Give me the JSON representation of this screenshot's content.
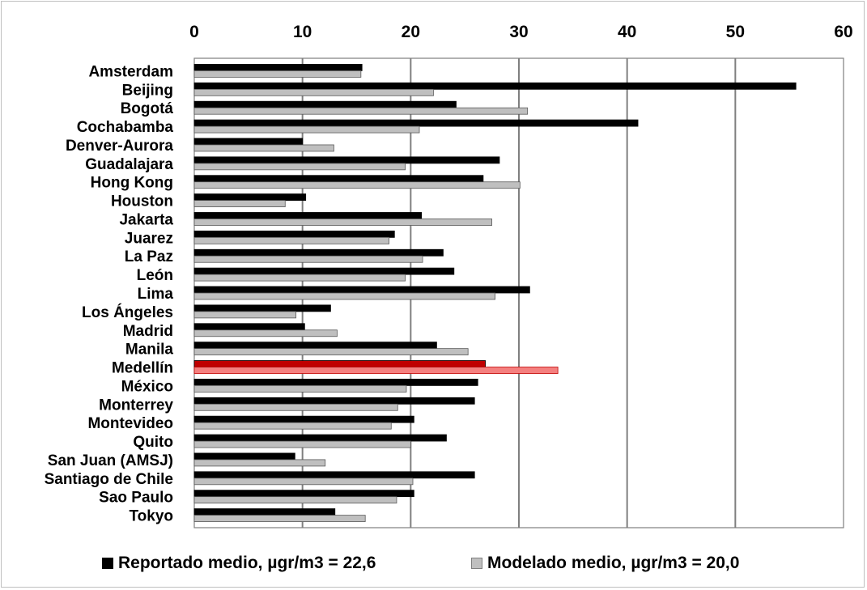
{
  "chart_data": {
    "type": "bar",
    "orientation": "horizontal",
    "categories": [
      "Amsterdam",
      "Beijing",
      "Bogotá",
      "Cochabamba",
      "Denver-Aurora",
      "Guadalajara",
      "Hong Kong",
      "Houston",
      "Jakarta",
      "Juarez",
      "La Paz",
      "León",
      "Lima",
      "Los Ángeles",
      "Madrid",
      "Manila",
      "Medellín",
      "México",
      "Monterrey",
      "Montevideo",
      "Quito",
      "San Juan (AMSJ)",
      "Santiago de Chile",
      "Sao Paulo",
      "Tokyo"
    ],
    "series": [
      {
        "name": "Reportado medio,  µgr/m3 = 22,6",
        "color": "#000000",
        "values": [
          15.5,
          55.6,
          24.2,
          41.0,
          10.0,
          28.2,
          26.7,
          10.3,
          21.0,
          18.5,
          23.0,
          24.0,
          31.0,
          12.6,
          10.2,
          22.4,
          26.9,
          26.2,
          25.9,
          20.3,
          23.3,
          9.3,
          25.9,
          20.3,
          13.0
        ]
      },
      {
        "name": "Modelado medio,  µgr/m3 = 20,0",
        "color": "#bfbfbf",
        "values": [
          15.4,
          22.1,
          30.8,
          20.8,
          12.9,
          19.5,
          30.1,
          8.4,
          27.5,
          18.0,
          21.1,
          19.5,
          27.8,
          9.4,
          13.2,
          25.3,
          33.6,
          19.6,
          18.8,
          18.2,
          20.0,
          12.1,
          20.2,
          18.7,
          15.8
        ]
      }
    ],
    "highlight": {
      "category": "Medellín",
      "colors": [
        "#c00000",
        "#f4807f"
      ]
    },
    "xlim": [
      0,
      60
    ],
    "ticks": [
      "0",
      "10",
      "20",
      "30",
      "40",
      "50",
      "60"
    ],
    "axis_position": "top",
    "grid": true,
    "legend": "bottom",
    "title": "",
    "xlabel": "",
    "ylabel": ""
  },
  "legend": {
    "reportado": "Reportado medio,  µgr/m3 = 22,6",
    "modelado": "Modelado medio,  µgr/m3 = 20,0"
  }
}
